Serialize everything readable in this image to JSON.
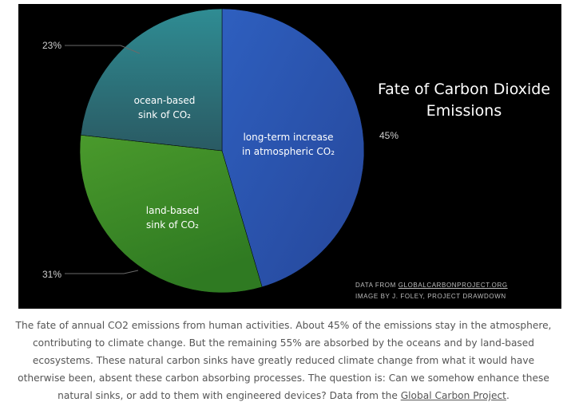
{
  "chart_data": {
    "type": "pie",
    "title_line1": "Fate of Carbon Dioxide",
    "title_line2": "Emissions",
    "slices": [
      {
        "key": "atmosphere",
        "label_line1": "long-term increase",
        "label_line2": "in atmospheric CO₂",
        "value": 45,
        "value_label": "45%",
        "color": "#2d58b0"
      },
      {
        "key": "land",
        "label_line1": "land-based",
        "label_line2": "sink of CO₂",
        "value": 31,
        "value_label": "31%",
        "color": "#3f8c2a"
      },
      {
        "key": "ocean",
        "label_line1": "ocean-based",
        "label_line2": "sink of CO₂",
        "value": 23,
        "value_label": "23%",
        "color": "#2e6e72"
      }
    ],
    "credit_line1_prefix": "DATA FROM ",
    "credit_line1_link": "GLOBALCARBONPROJECT.ORG",
    "credit_line2": "IMAGE BY J. FOLEY, PROJECT DRAWDOWN"
  },
  "caption": {
    "text": "The fate of annual CO2 emissions from human activities. About 45% of the emissions stay in the atmosphere, contributing to climate change. But the remaining 55% are absorbed by the oceans and by land-based ecosystems. These natural carbon sinks have greatly reduced climate change from what it would have otherwise been, absent these carbon absorbing processes. The question is: Can we somehow enhance these natural sinks, or add to them with engineered devices? Data from the ",
    "link_text": "Global Carbon Project",
    "end": "."
  }
}
